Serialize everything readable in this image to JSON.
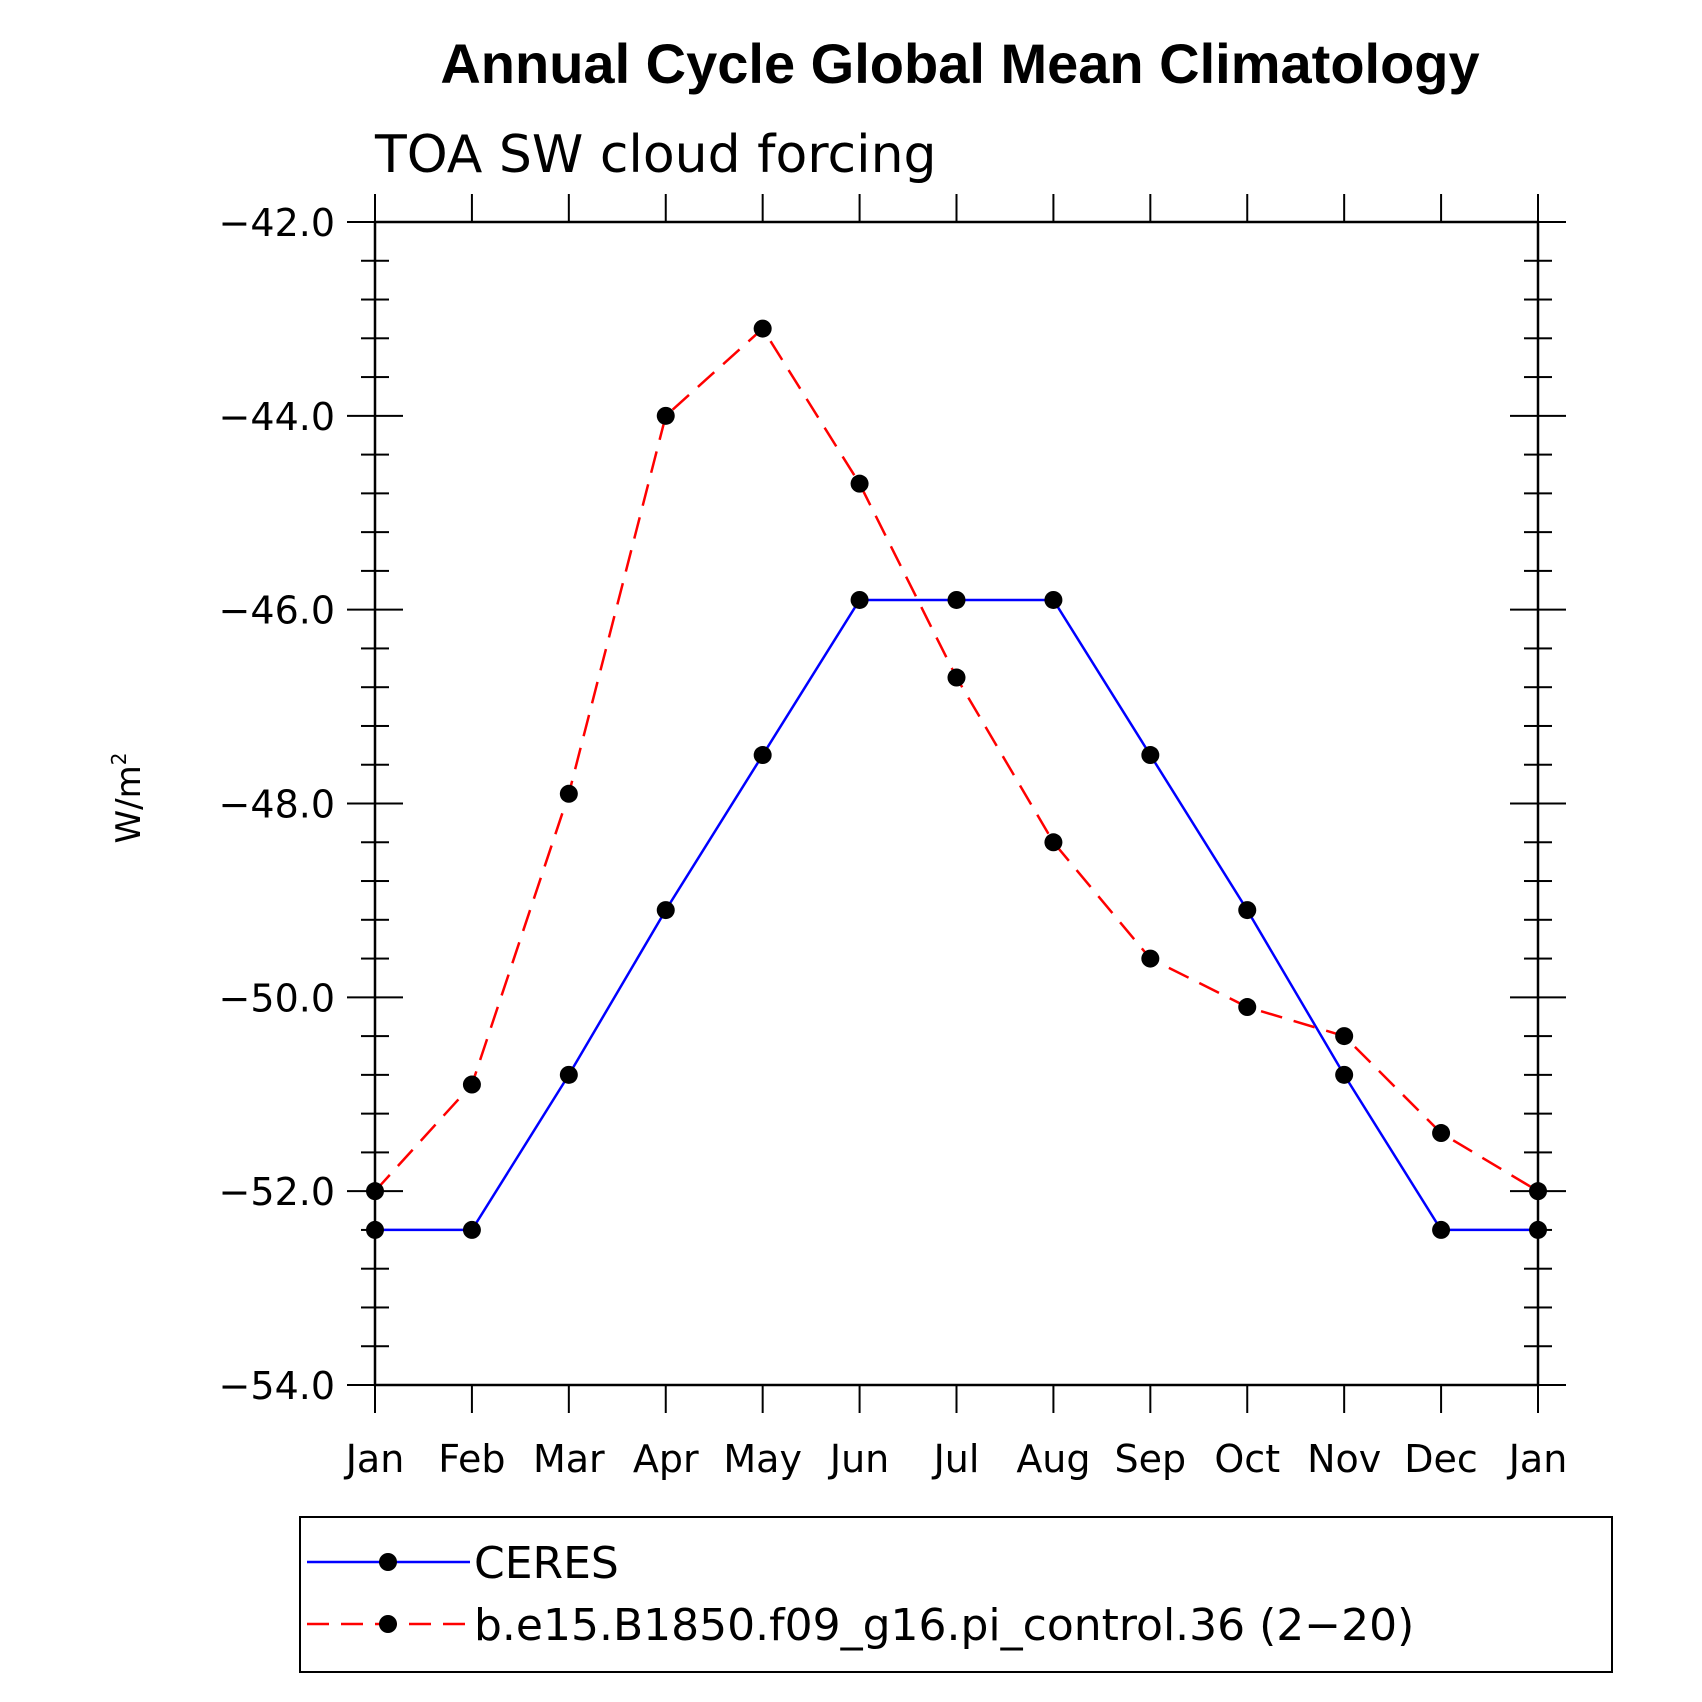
{
  "chart_data": {
    "type": "line",
    "title": "Annual Cycle Global Mean Climatology",
    "subtitle": "TOA SW cloud forcing",
    "ylabel": "W/m",
    "ylabel_sup": "2",
    "xlabel": "",
    "categories": [
      "Jan",
      "Feb",
      "Mar",
      "Apr",
      "May",
      "Jun",
      "Jul",
      "Aug",
      "Sep",
      "Oct",
      "Nov",
      "Dec",
      "Jan"
    ],
    "ylim": [
      -54.0,
      -42.0
    ],
    "yticks": [
      -42.0,
      -44.0,
      -46.0,
      -48.0,
      -50.0,
      -52.0,
      -54.0
    ],
    "ytick_labels": [
      "−42.0",
      "−44.0",
      "−46.0",
      "−48.0",
      "−50.0",
      "−52.0",
      "−54.0"
    ],
    "legend_position": "bottom",
    "series": [
      {
        "name": "CERES",
        "color": "#0000ff",
        "dash": "solid",
        "marker": "dot",
        "values": [
          -52.4,
          -52.4,
          -50.8,
          -49.1,
          -47.5,
          -45.9,
          -45.9,
          -45.9,
          -47.5,
          -49.1,
          -50.8,
          -52.4,
          -52.4
        ]
      },
      {
        "name": "b.e15.B1850.f09_g16.pi_control.36 (2−20)",
        "color": "#ff0000",
        "dash": "dashed",
        "marker": "dot",
        "values": [
          -52.0,
          -50.9,
          -47.9,
          -44.0,
          -43.1,
          -44.7,
          -46.7,
          -48.4,
          -49.6,
          -50.1,
          -50.4,
          -51.4,
          -52.0
        ]
      }
    ]
  }
}
